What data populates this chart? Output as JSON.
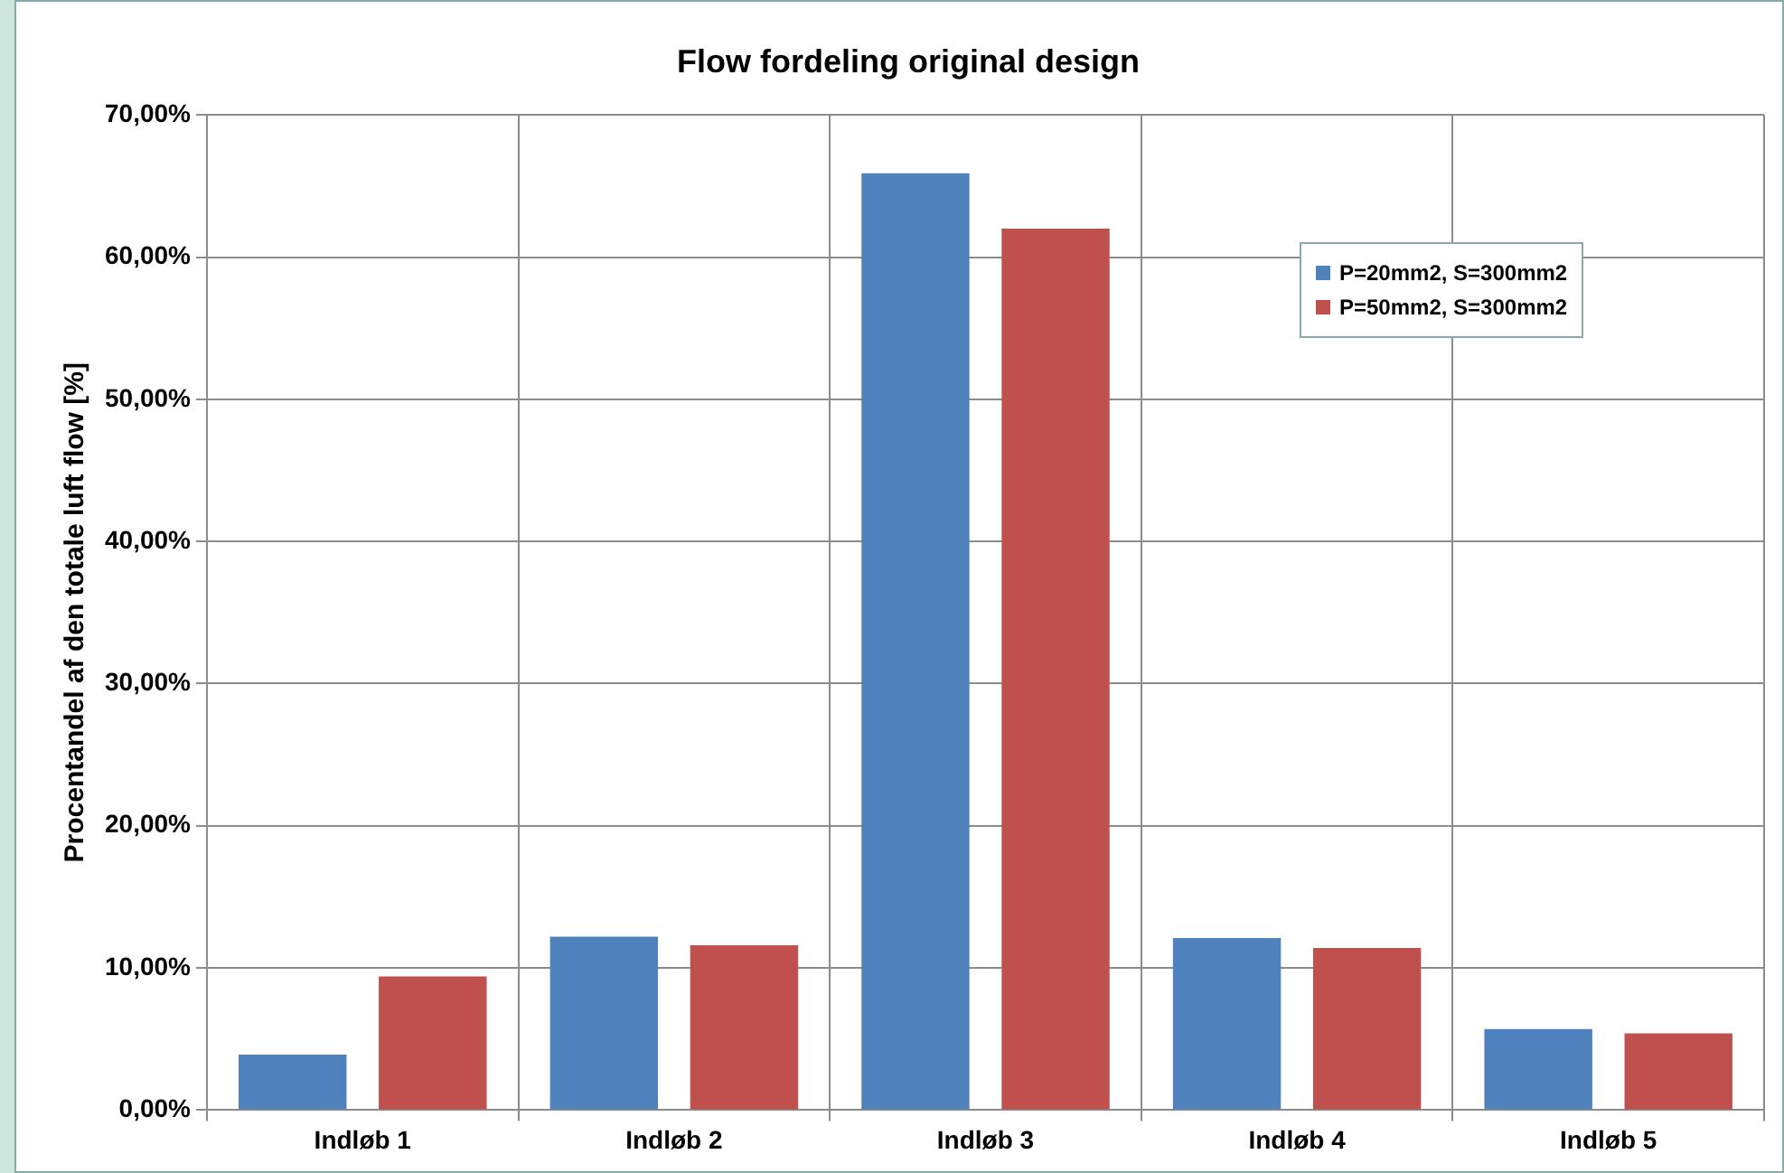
{
  "chart_data": {
    "type": "bar",
    "title": "Flow fordeling original design",
    "ylabel": "Procentandel af den totale luft flow [%]",
    "categories": [
      "Indløb 1",
      "Indløb 2",
      "Indløb 3",
      "Indløb 4",
      "Indløb 5"
    ],
    "series": [
      {
        "name": "P=20mm2, S=300mm2",
        "color": "#4f81bd",
        "values": [
          3.9,
          12.2,
          65.9,
          12.1,
          5.7
        ]
      },
      {
        "name": "P=50mm2, S=300mm2",
        "color": "#c0504d",
        "values": [
          9.4,
          11.6,
          62.0,
          11.4,
          5.4
        ]
      }
    ],
    "ylim": [
      0,
      70
    ],
    "yticks": [
      {
        "value": 0,
        "label": "0,00%"
      },
      {
        "value": 10,
        "label": "10,00%"
      },
      {
        "value": 20,
        "label": "20,00%"
      },
      {
        "value": 30,
        "label": "30,00%"
      },
      {
        "value": 40,
        "label": "40,00%"
      },
      {
        "value": 50,
        "label": "50,00%"
      },
      {
        "value": 60,
        "label": "60,00%"
      },
      {
        "value": 70,
        "label": "70,00%"
      }
    ],
    "grid": true,
    "legend": "top right"
  }
}
